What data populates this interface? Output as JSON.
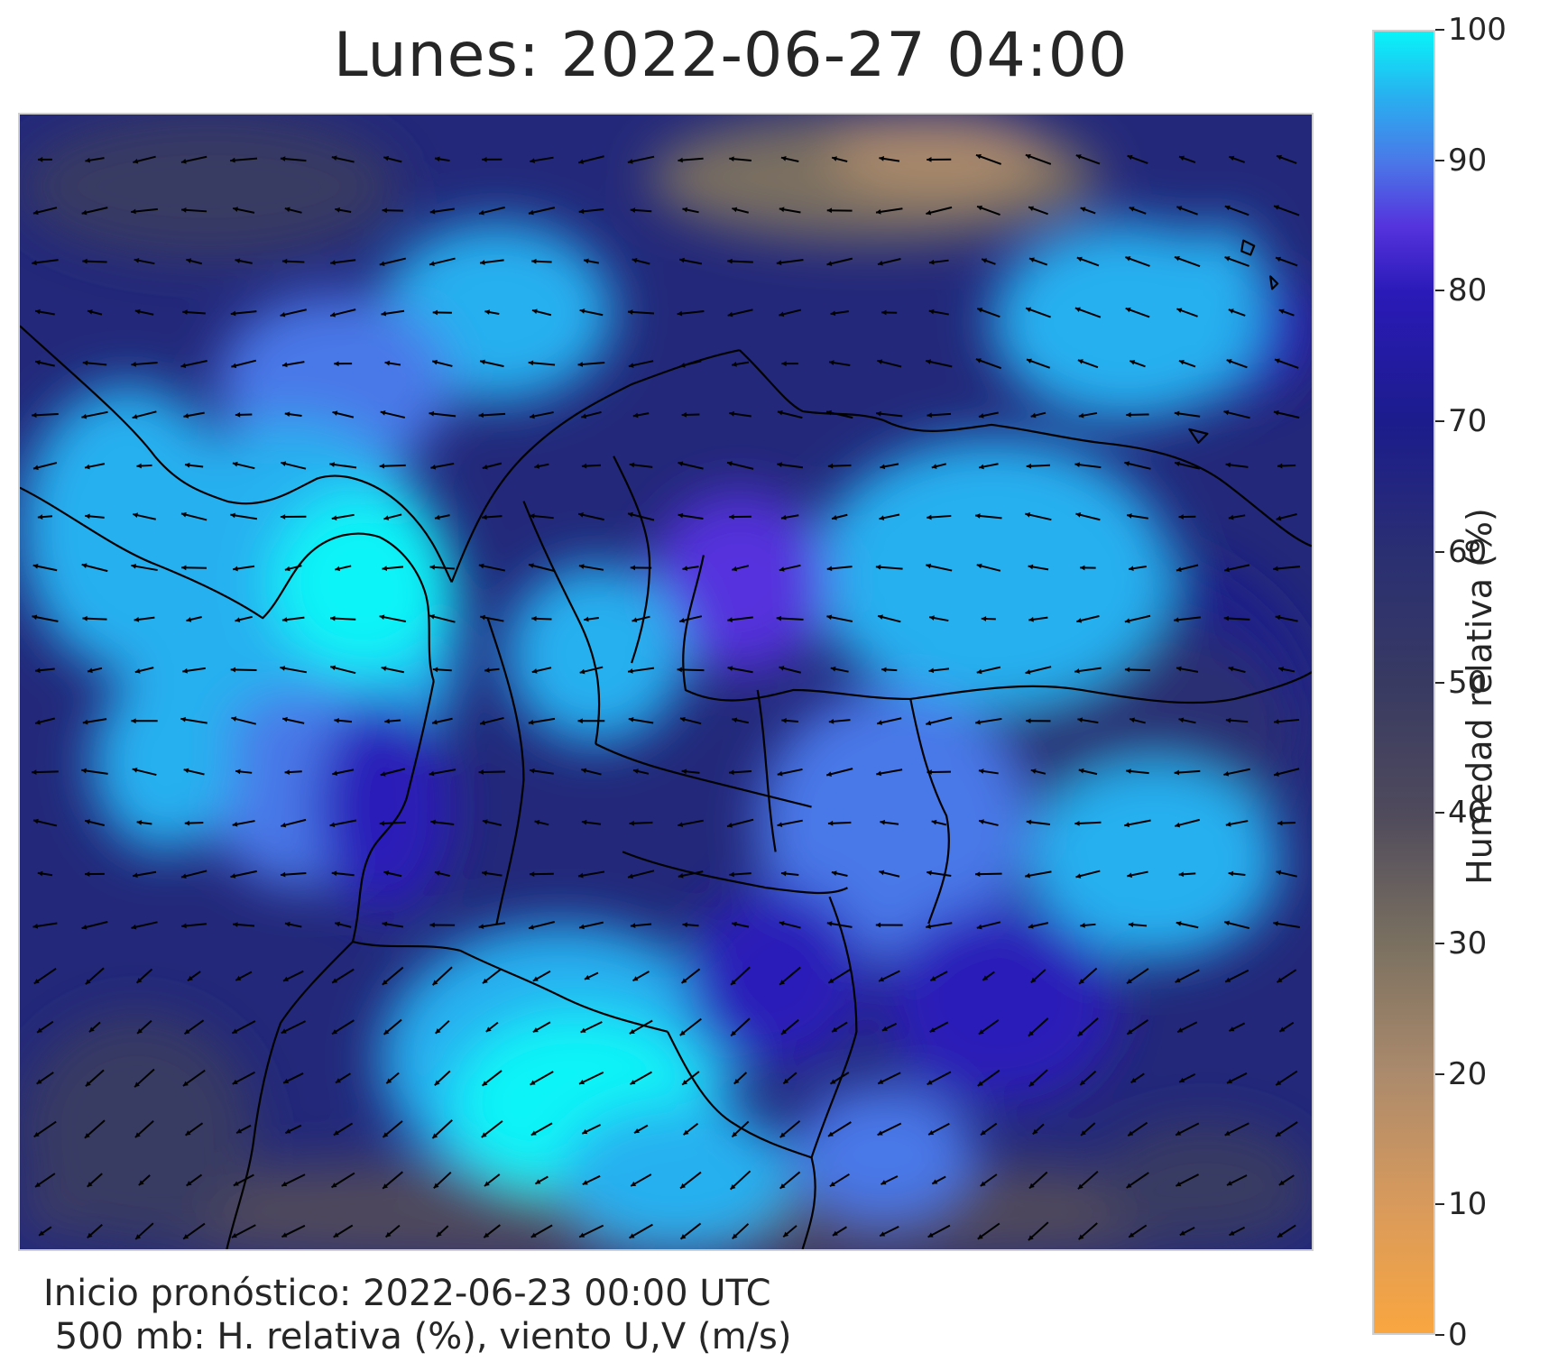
{
  "title": "Lunes: 2022-06-27 04:00",
  "footer": {
    "line1": "Inicio pronóstico: 2022-06-23 00:00 UTC",
    "line2": " 500 mb: H. relativa (%), viento U,V (m/s)"
  },
  "map": {
    "variable": "Humedad relativa",
    "wind_vectors": "U,V",
    "level": "500 mb"
  },
  "colorbar": {
    "label": "Humedad relativa (%)",
    "min": 0,
    "max": 100,
    "ticks": [
      "0",
      "10",
      "20",
      "30",
      "40",
      "50",
      "60",
      "70",
      "80",
      "90",
      "100"
    ],
    "colors": {
      "0": "#f9a640",
      "10": "#d89a5c",
      "20": "#ab8a6c",
      "30": "#7a7060",
      "40": "#4f4a5c",
      "50": "#383a62",
      "60": "#2a2f72",
      "70": "#1c1c8c",
      "80": "#2a1ab8",
      "85": "#5533dd",
      "90": "#4a78e8",
      "95": "#28b0f0",
      "100": "#08f4f8"
    }
  }
}
